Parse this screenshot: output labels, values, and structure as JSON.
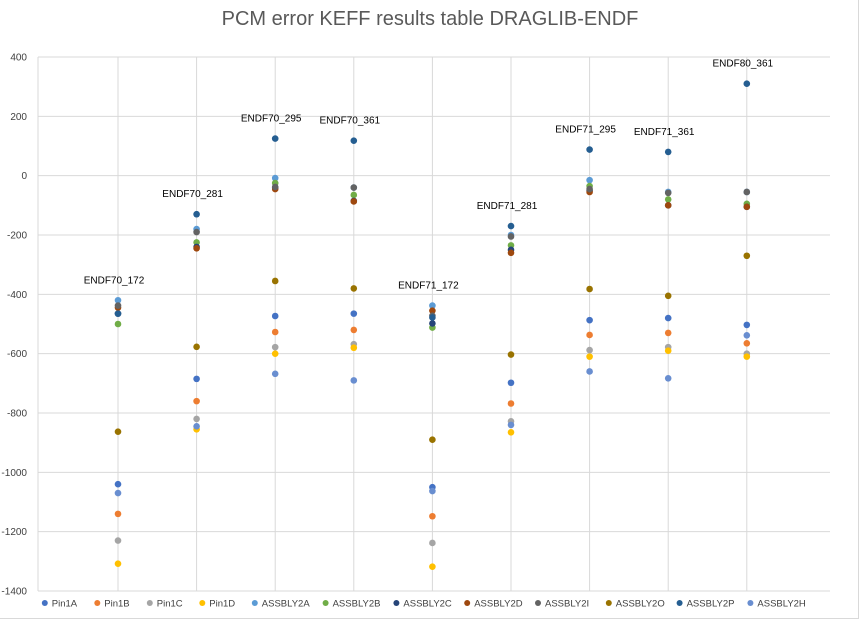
{
  "chart_data": {
    "type": "scatter",
    "title": "PCM error KEFF results table DRAGLIB-ENDF",
    "xlabel": "",
    "ylabel": "",
    "ylim": [
      -1400,
      400
    ],
    "yticks": [
      400,
      200,
      0,
      -200,
      -400,
      -600,
      -800,
      -1000,
      -1200,
      -1400
    ],
    "grid": true,
    "legend_position": "bottom",
    "categories": [
      "ENDF70_172",
      "ENDF70_281",
      "ENDF70_295",
      "ENDF70_361",
      "ENDF71_172",
      "ENDF71_281",
      "ENDF71_295",
      "ENDF71_361",
      "ENDF80_361"
    ],
    "series": [
      {
        "name": "Pin1A",
        "color": "#4472c4",
        "values": [
          -1040,
          -685,
          -473,
          -465,
          -1050,
          -698,
          -487,
          -480,
          -503
        ]
      },
      {
        "name": "Pin1B",
        "color": "#ed7d31",
        "values": [
          -1140,
          -760,
          -527,
          -520,
          -1148,
          -768,
          -537,
          -530,
          -565
        ]
      },
      {
        "name": "Pin1C",
        "color": "#a5a5a5",
        "values": [
          -1230,
          -820,
          -578,
          -568,
          -1238,
          -828,
          -588,
          -578,
          -600
        ]
      },
      {
        "name": "Pin1D",
        "color": "#ffc000",
        "values": [
          -1308,
          -855,
          -600,
          -580,
          -1318,
          -865,
          -610,
          -590,
          -610
        ]
      },
      {
        "name": "ASSBLY2A",
        "color": "#5b9bd5",
        "values": [
          -420,
          -180,
          -8,
          -40,
          -438,
          -200,
          -15,
          -55,
          -55
        ]
      },
      {
        "name": "ASSBLY2B",
        "color": "#70ad47",
        "values": [
          -500,
          -225,
          -25,
          -65,
          -512,
          -235,
          -35,
          -80,
          -95
        ]
      },
      {
        "name": "ASSBLY2C",
        "color": "#264478",
        "values": [
          -465,
          -240,
          -40,
          -85,
          -498,
          -250,
          -50,
          -100,
          -105
        ]
      },
      {
        "name": "ASSBLY2D",
        "color": "#9e480e",
        "values": [
          -445,
          -245,
          -45,
          -87,
          -455,
          -260,
          -55,
          -100,
          -105
        ]
      },
      {
        "name": "ASSBLY2I",
        "color": "#636363",
        "values": [
          -438,
          -190,
          -38,
          -40,
          -472,
          -205,
          -45,
          -58,
          -55
        ]
      },
      {
        "name": "ASSBLY2O",
        "color": "#997300",
        "values": [
          -863,
          -577,
          -355,
          -380,
          -890,
          -603,
          -382,
          -405,
          -270
        ]
      },
      {
        "name": "ASSBLY2P",
        "color": "#255e91",
        "values": [
          -465,
          -130,
          125,
          118,
          -478,
          -170,
          88,
          80,
          310
        ]
      },
      {
        "name": "ASSBLY2H",
        "color": "#698ed0",
        "values": [
          -1070,
          -845,
          -668,
          -690,
          -1063,
          -840,
          -660,
          -683,
          -538
        ]
      }
    ]
  }
}
